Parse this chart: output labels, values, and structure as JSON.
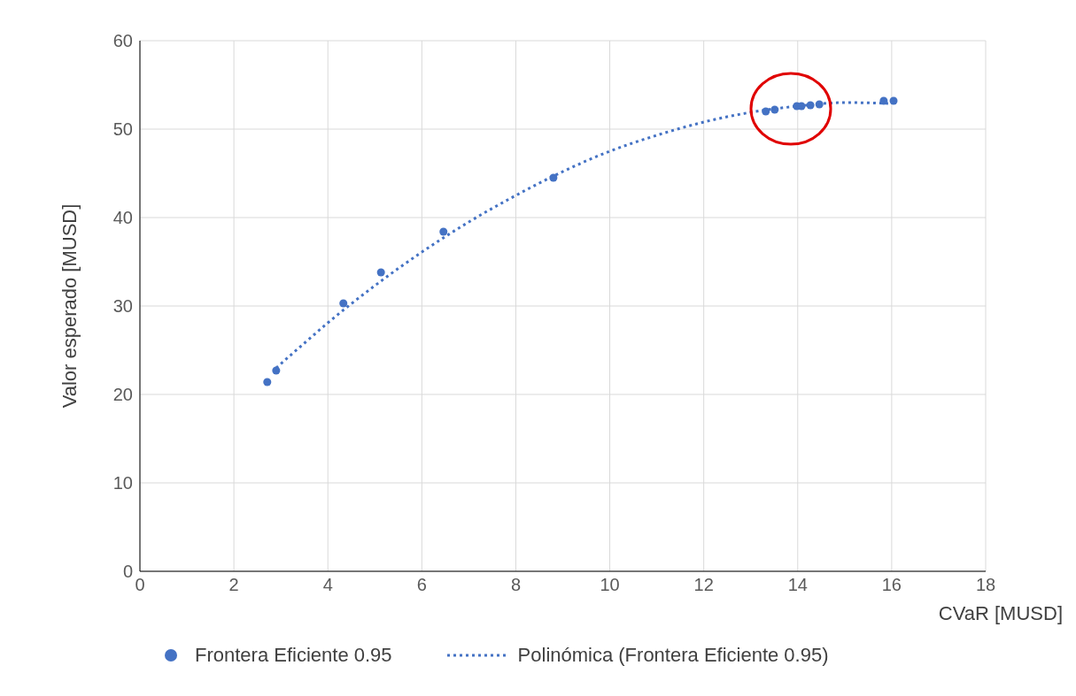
{
  "chart_data": {
    "type": "scatter",
    "xlabel": "CVaR [MUSD]",
    "ylabel": "Valor esperado  [MUSD]",
    "xlim": [
      0,
      18
    ],
    "xticks": [
      0,
      2,
      4,
      6,
      8,
      10,
      12,
      14,
      16,
      18
    ],
    "ylim": [
      0,
      60
    ],
    "yticks": [
      0,
      10,
      20,
      30,
      40,
      50,
      60
    ],
    "grid": true,
    "legend": "bottom",
    "series": [
      {
        "name": "Frontera Eficiente 0.95",
        "color": "#4472c4",
        "marker": "circle",
        "x": [
          2.71,
          2.9,
          4.33,
          5.13,
          6.46,
          8.8,
          13.32,
          13.51,
          13.98,
          14.08,
          14.27,
          14.46,
          15.83,
          16.04
        ],
        "values": [
          21.4,
          22.7,
          30.3,
          33.8,
          38.4,
          44.5,
          52.0,
          52.2,
          52.6,
          52.6,
          52.7,
          52.8,
          53.2,
          53.2
        ]
      },
      {
        "name": "Polinómica (Frontera Eficiente 0.95)",
        "type": "line",
        "color": "#4472c4",
        "marker": "none",
        "line_style": "dotted",
        "x": [
          2.9,
          3.5,
          4,
          5,
          6,
          7,
          8,
          9,
          10,
          11,
          12,
          13,
          14,
          15,
          16
        ],
        "values": [
          23.0,
          25.8,
          28.1,
          32.3,
          36.1,
          39.5,
          42.5,
          45.2,
          47.5,
          49.3,
          50.8,
          51.9,
          52.6,
          53.0,
          52.9
        ]
      }
    ]
  }
}
